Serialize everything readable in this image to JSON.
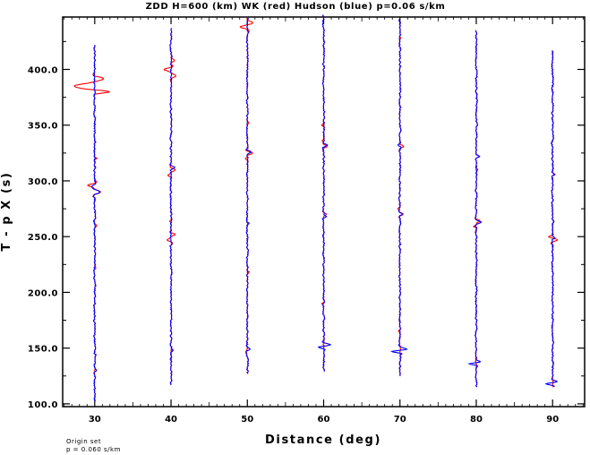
{
  "chart_data": {
    "type": "line",
    "title": "ZDD H=600 (km) WK (red) Hudson (blue) p=0.06 s/km",
    "xlabel": "Distance (deg)",
    "ylabel": "T - p X (s)",
    "xlim": [
      25.8,
      94.2
    ],
    "ylim": [
      97.5,
      447.0
    ],
    "x_ticks": [
      30,
      40,
      50,
      60,
      70,
      80,
      90
    ],
    "x_tick_labels": [
      "30",
      "40",
      "50",
      "60",
      "70",
      "80",
      "90"
    ],
    "y_ticks": [
      100,
      150,
      200,
      250,
      300,
      350,
      400
    ],
    "y_tick_labels": [
      "100.0",
      "150.0",
      "200.0",
      "250.0",
      "300.0",
      "350.0",
      "400.0"
    ],
    "trace_scale_deg": 4.0,
    "series": [
      {
        "name": "WK",
        "color": "#ff0000"
      },
      {
        "name": "Hudson",
        "color": "#0000ff"
      }
    ],
    "traces": [
      {
        "distance": 30,
        "t_start": 102,
        "t_end": 422,
        "wk_wavelets": [
          [
            385,
            -2.6,
            5
          ],
          [
            380,
            1.3,
            2.5
          ],
          [
            392,
            0.8,
            3
          ],
          [
            296,
            -0.9,
            3
          ],
          [
            290,
            0.8,
            3
          ],
          [
            320,
            0.25,
            2
          ],
          [
            222,
            0.2,
            2
          ],
          [
            260,
            0.2,
            3
          ]
        ],
        "hudson_wavelets": [
          [
            290,
            0.7,
            3
          ],
          [
            295,
            -0.4,
            2.5
          ],
          [
            130,
            0.25,
            2
          ],
          [
            385,
            0.1,
            3
          ]
        ]
      },
      {
        "distance": 40,
        "t_start": 117,
        "t_end": 437,
        "wk_wavelets": [
          [
            400,
            -0.9,
            3
          ],
          [
            394,
            0.6,
            3
          ],
          [
            408,
            0.4,
            3
          ],
          [
            310,
            0.5,
            2.5
          ],
          [
            305,
            -0.4,
            2.5
          ],
          [
            252,
            0.55,
            2.5
          ],
          [
            247,
            -0.5,
            2.5
          ],
          [
            264,
            -0.2,
            2
          ]
        ],
        "hudson_wavelets": [
          [
            312,
            0.5,
            2.5
          ],
          [
            148,
            0.25,
            2
          ],
          [
            140,
            -0.15,
            2
          ]
        ]
      },
      {
        "distance": 50,
        "t_start": 127,
        "t_end": 447,
        "wk_wavelets": [
          [
            438,
            -0.8,
            3
          ],
          [
            442,
            0.6,
            3
          ],
          [
            325,
            0.65,
            2.5
          ],
          [
            320,
            -0.3,
            2
          ],
          [
            218,
            0.2,
            2
          ],
          [
            352,
            0.2,
            2
          ]
        ],
        "hudson_wavelets": [
          [
            149,
            0.4,
            2.5
          ],
          [
            326,
            0.5,
            2.5
          ],
          [
            262,
            0.2,
            2
          ]
        ]
      },
      {
        "distance": 60,
        "t_start": 129,
        "t_end": 449,
        "wk_wavelets": [
          [
            331,
            0.5,
            2.5
          ],
          [
            336,
            -0.3,
            2
          ],
          [
            190,
            -0.2,
            2
          ],
          [
            270,
            0.25,
            2
          ],
          [
            350,
            -0.25,
            2
          ]
        ],
        "hudson_wavelets": [
          [
            151,
            -0.6,
            2
          ],
          [
            153,
            0.8,
            2.5
          ],
          [
            332,
            0.55,
            2.5
          ],
          [
            268,
            0.3,
            2
          ]
        ]
      },
      {
        "distance": 70,
        "t_start": 125,
        "t_end": 445,
        "wk_wavelets": [
          [
            331,
            0.4,
            2.5
          ],
          [
            270,
            0.4,
            2.5
          ],
          [
            275,
            -0.2,
            2
          ],
          [
            165,
            -0.2,
            2
          ],
          [
            428,
            0.15,
            2
          ]
        ],
        "hudson_wavelets": [
          [
            147,
            -1.1,
            2
          ],
          [
            149,
            0.55,
            3
          ],
          [
            332,
            -0.3,
            2
          ],
          [
            270,
            0.3,
            2
          ]
        ]
      },
      {
        "distance": 80,
        "t_start": 115,
        "t_end": 435,
        "wk_wavelets": [
          [
            264,
            0.5,
            2.5
          ],
          [
            259,
            -0.3,
            2
          ],
          [
            322,
            0.3,
            2
          ],
          [
            310,
            0.2,
            2
          ]
        ],
        "hudson_wavelets": [
          [
            136,
            -1.25,
            2
          ],
          [
            137,
            0.55,
            3
          ],
          [
            263,
            0.65,
            2.5
          ],
          [
            322,
            0.35,
            2
          ]
        ]
      },
      {
        "distance": 90,
        "t_start": 115,
        "t_end": 417,
        "wk_wavelets": [
          [
            247,
            0.6,
            2.5
          ],
          [
            250,
            -0.4,
            2
          ],
          [
            306,
            0.3,
            2
          ]
        ],
        "hudson_wavelets": [
          [
            118,
            -0.85,
            2
          ],
          [
            120,
            0.35,
            2.5
          ],
          [
            249,
            0.3,
            2
          ],
          [
            306,
            0.2,
            2
          ]
        ]
      }
    ]
  },
  "footnote": {
    "line1": "Origin set",
    "line2": "p = 0.060 s/km"
  }
}
